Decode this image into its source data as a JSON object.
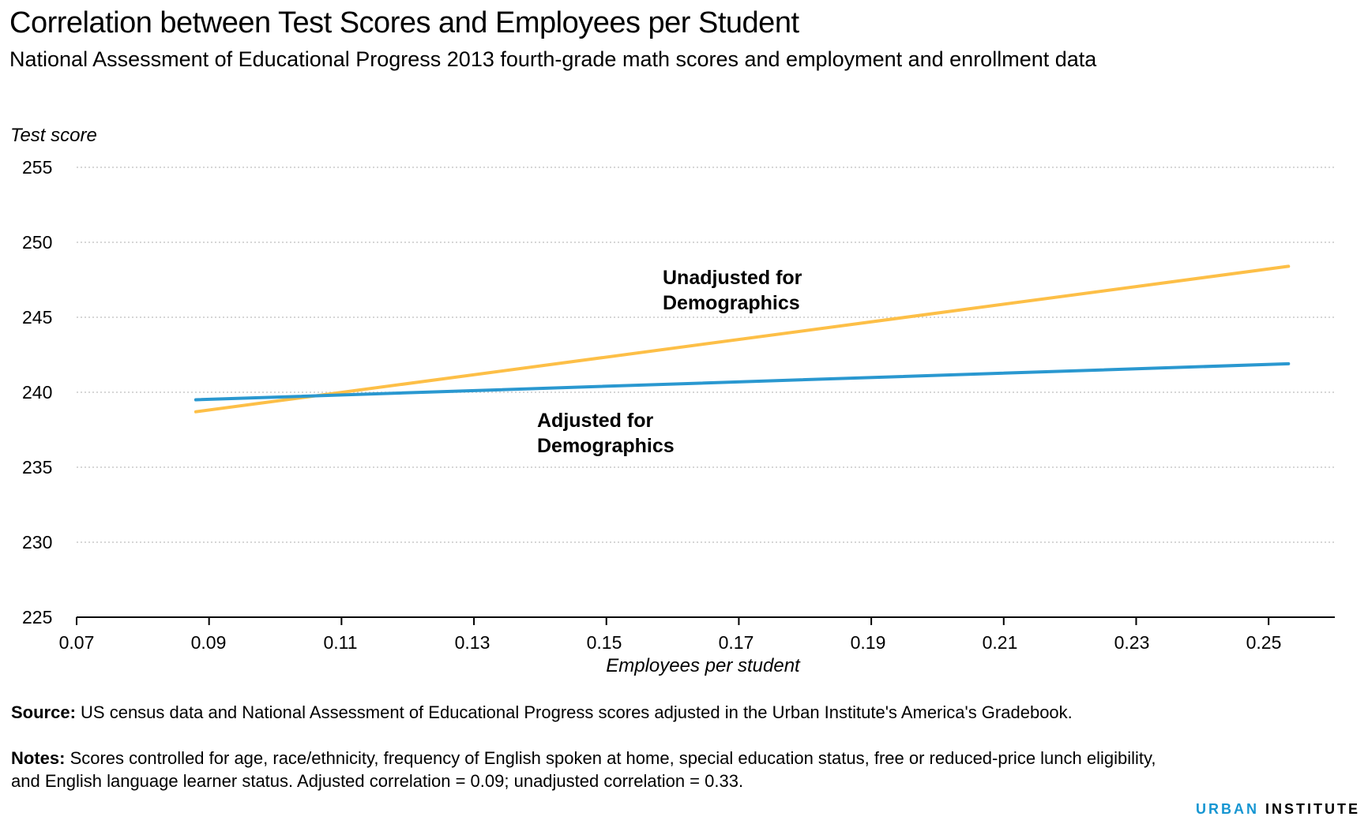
{
  "title": "Correlation between Test Scores and Employees per Student",
  "subtitle": "National Assessment of Educational Progress 2013 fourth-grade math scores and employment and enrollment data",
  "chart_data": {
    "type": "line",
    "title": "Correlation between Test Scores and Employees per Student",
    "subtitle": "National Assessment of Educational Progress 2013 fourth-grade math scores and employment and enrollment data",
    "xlabel": "Employees per student",
    "ylabel": "Test score",
    "xlim": [
      0.07,
      0.26
    ],
    "ylim": [
      225,
      255
    ],
    "xticks": [
      "0.07",
      "0.09",
      "0.11",
      "0.13",
      "0.15",
      "0.17",
      "0.19",
      "0.21",
      "0.23",
      "0.25"
    ],
    "yticks": [
      "255",
      "250",
      "245",
      "240",
      "235",
      "230",
      "225"
    ],
    "grid": "horizontal dotted",
    "series": [
      {
        "name": "Unadjusted for Demographics",
        "color": "#fdbf47",
        "x": [
          0.088,
          0.253
        ],
        "y": [
          238.7,
          248.4
        ]
      },
      {
        "name": "Adjusted for Demographics",
        "color": "#2a98d0",
        "x": [
          0.088,
          0.253
        ],
        "y": [
          239.5,
          241.9
        ]
      }
    ],
    "annotations": [
      {
        "text_line1": "Unadjusted for",
        "text_line2": "Demographics"
      },
      {
        "text_line1": "Adjusted for",
        "text_line2": "Demographics"
      }
    ]
  },
  "source_label": "Source:",
  "source_text": " US census data and  National Assessment of Educational Progress scores adjusted in the Urban Institute's America's Gradebook.",
  "notes_label": "Notes:",
  "notes_text": " Scores controlled for age, race/ethnicity, frequency of English spoken at home, special education status, free or reduced-price lunch eligibility, and English language learner status. Adjusted correlation = 0.09; unadjusted correlation = 0.33.",
  "brand": {
    "part1": "URBAN",
    "part2": " INSTITUTE",
    "color": "#1696d2"
  }
}
